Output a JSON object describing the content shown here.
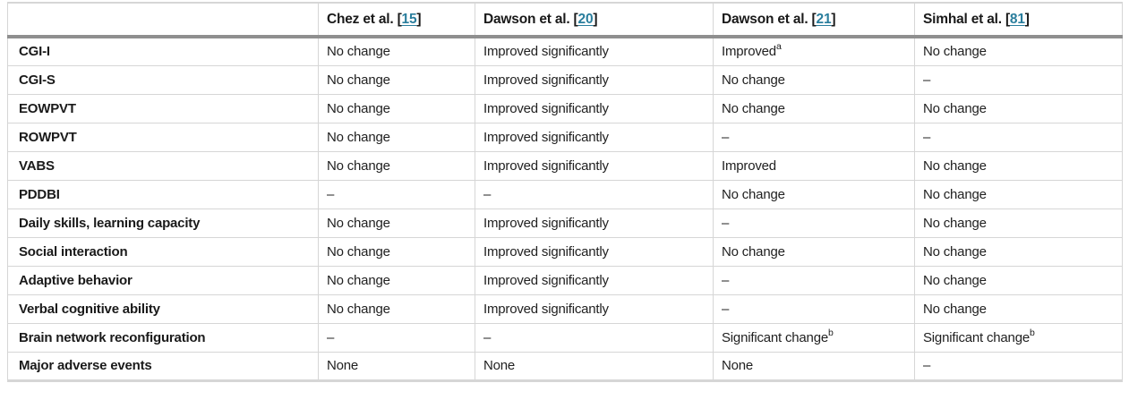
{
  "colors": {
    "text": "#212121",
    "label": "#1a1a1a",
    "reference_link": "#2a7e9d",
    "border_light": "#d6d6d6",
    "header_rule": "#8f8f8f",
    "background": "#ffffff"
  },
  "table": {
    "corner_label": "",
    "header": [
      {
        "label": "Chez et al. ",
        "bracket_open": "[",
        "ref": "15",
        "bracket_close": "]"
      },
      {
        "label": "Dawson et al. ",
        "bracket_open": "[",
        "ref": "20",
        "bracket_close": "]"
      },
      {
        "label": "Dawson et al. ",
        "bracket_open": "[",
        "ref": "21",
        "bracket_close": "]"
      },
      {
        "label": "Simhal et al. ",
        "bracket_open": "[",
        "ref": "81",
        "bracket_close": "]"
      }
    ],
    "rows": [
      {
        "label": "CGI-I",
        "cells": [
          {
            "text": "No change"
          },
          {
            "text": "Improved significantly"
          },
          {
            "text": "Improved",
            "sup": "a"
          },
          {
            "text": "No change"
          }
        ]
      },
      {
        "label": "CGI-S",
        "cells": [
          {
            "text": "No change"
          },
          {
            "text": "Improved significantly"
          },
          {
            "text": "No change"
          },
          {
            "text": "–"
          }
        ]
      },
      {
        "label": "EOWPVT",
        "cells": [
          {
            "text": "No change"
          },
          {
            "text": "Improved significantly"
          },
          {
            "text": "No change"
          },
          {
            "text": "No change"
          }
        ]
      },
      {
        "label": "ROWPVT",
        "cells": [
          {
            "text": "No change"
          },
          {
            "text": "Improved significantly"
          },
          {
            "text": "–"
          },
          {
            "text": "–"
          }
        ]
      },
      {
        "label": "VABS",
        "cells": [
          {
            "text": "No change"
          },
          {
            "text": "Improved significantly"
          },
          {
            "text": "Improved"
          },
          {
            "text": "No change"
          }
        ]
      },
      {
        "label": "PDDBI",
        "cells": [
          {
            "text": "–"
          },
          {
            "text": "–"
          },
          {
            "text": "No change"
          },
          {
            "text": "No change"
          }
        ]
      },
      {
        "label": "Daily skills, learning capacity",
        "cells": [
          {
            "text": "No change"
          },
          {
            "text": "Improved significantly"
          },
          {
            "text": "–"
          },
          {
            "text": "No change"
          }
        ]
      },
      {
        "label": "Social interaction",
        "cells": [
          {
            "text": "No change"
          },
          {
            "text": "Improved significantly"
          },
          {
            "text": "No change"
          },
          {
            "text": "No change"
          }
        ]
      },
      {
        "label": "Adaptive behavior",
        "cells": [
          {
            "text": "No change"
          },
          {
            "text": "Improved significantly"
          },
          {
            "text": "–"
          },
          {
            "text": "No change"
          }
        ]
      },
      {
        "label": "Verbal cognitive ability",
        "cells": [
          {
            "text": "No change"
          },
          {
            "text": "Improved significantly"
          },
          {
            "text": "–"
          },
          {
            "text": "No change"
          }
        ]
      },
      {
        "label": "Brain network reconfiguration",
        "cells": [
          {
            "text": "–"
          },
          {
            "text": "–"
          },
          {
            "text": "Significant change",
            "sup": "b"
          },
          {
            "text": "Significant change",
            "sup": "b"
          }
        ]
      },
      {
        "label": "Major adverse events",
        "cells": [
          {
            "text": "None"
          },
          {
            "text": "None"
          },
          {
            "text": "None"
          },
          {
            "text": "–"
          }
        ]
      }
    ]
  }
}
